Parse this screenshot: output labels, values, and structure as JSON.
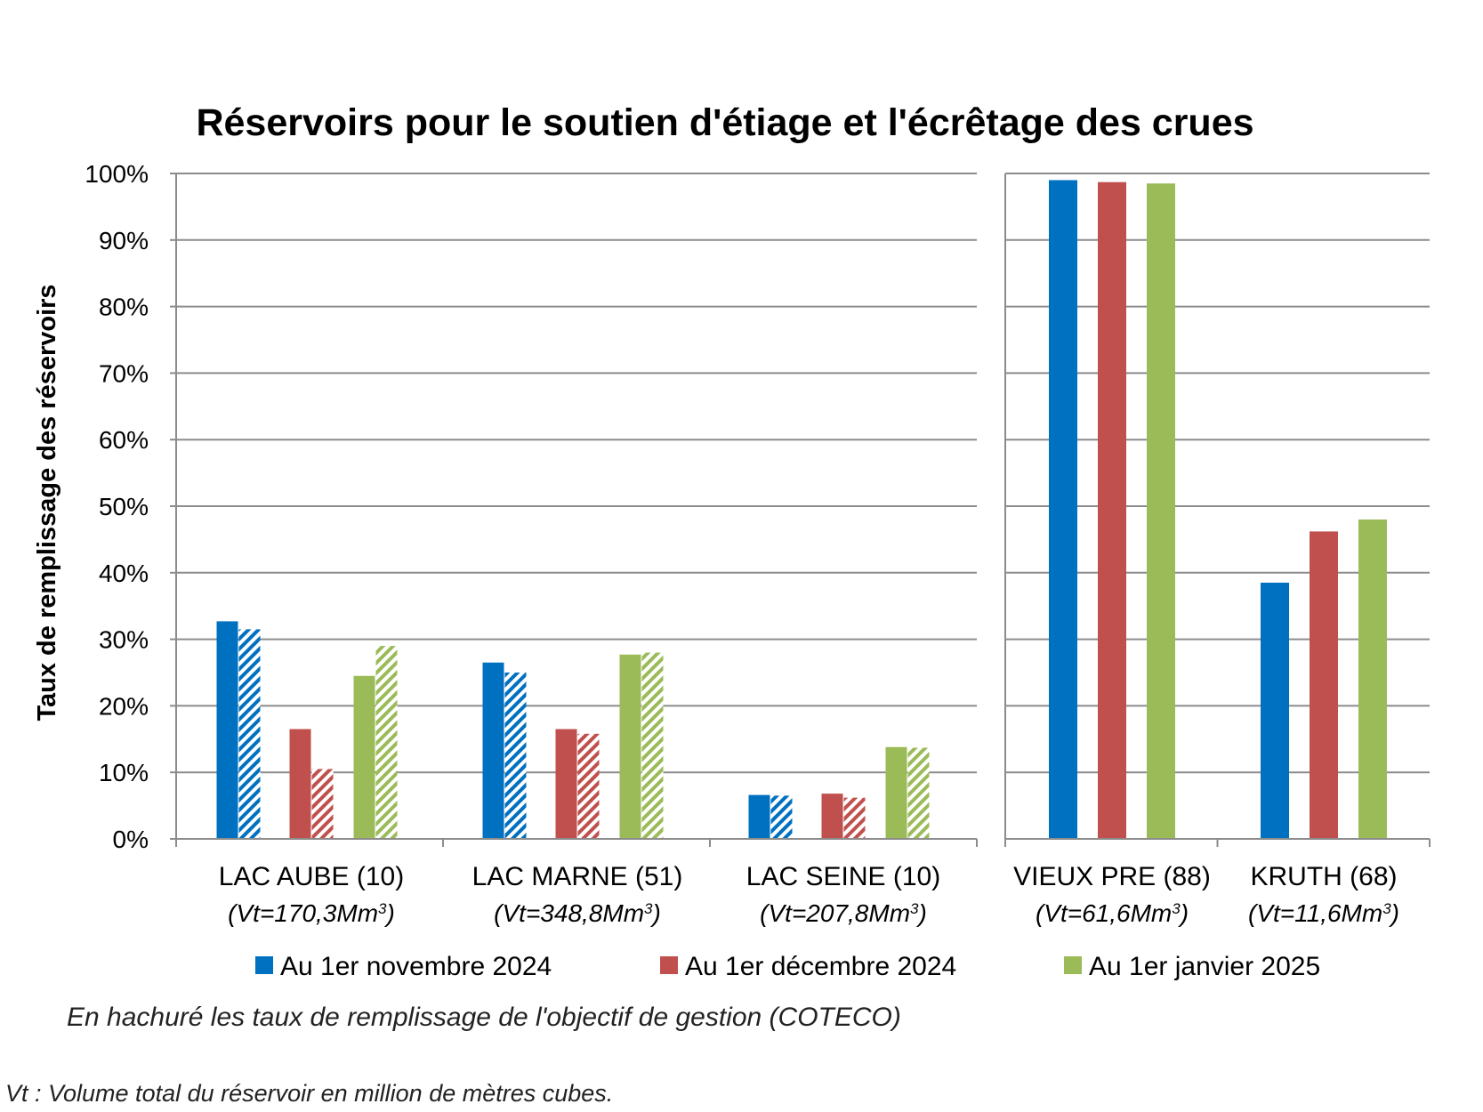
{
  "chart_data": {
    "type": "bar",
    "title": "Réservoirs pour le soutien d'étiage et l'écrêtage des crues",
    "ylabel": "Taux de remplissage des réservoirs",
    "xlabel": "",
    "ylim": [
      0,
      100
    ],
    "y_ticks": [
      "0%",
      "10%",
      "20%",
      "30%",
      "40%",
      "50%",
      "60%",
      "70%",
      "80%",
      "90%",
      "100%"
    ],
    "grid": true,
    "legend_position": "bottom",
    "series": [
      {
        "name": "Au 1er novembre 2024",
        "color": "#0070C0"
      },
      {
        "name": "Au 1er décembre 2024",
        "color": "#C0504D"
      },
      {
        "name": "Au 1er janvier 2025",
        "color": "#9BBB59"
      }
    ],
    "panels": [
      {
        "categories": [
          {
            "name": "LAC AUBE (10)",
            "volume": "(Vt=170,3Mm",
            "unit_sup": "3",
            "close": ")",
            "actual": [
              32.7,
              16.5,
              24.5
            ],
            "objective": [
              31.5,
              10.5,
              29.0
            ]
          },
          {
            "name": "LAC MARNE (51)",
            "volume": "(Vt=348,8Mm",
            "unit_sup": "3",
            "close": ")",
            "actual": [
              26.5,
              16.5,
              27.7
            ],
            "objective": [
              25.0,
              15.8,
              28.0
            ]
          },
          {
            "name": "LAC SEINE (10)",
            "volume": "(Vt=207,8Mm",
            "unit_sup": "3",
            "close": ")",
            "actual": [
              6.6,
              6.8,
              13.8
            ],
            "objective": [
              6.5,
              6.2,
              13.7
            ]
          }
        ]
      },
      {
        "categories": [
          {
            "name": "VIEUX PRE (88)",
            "volume": "(Vt=61,6Mm",
            "unit_sup": "3",
            "close": ")",
            "actual": [
              99.0,
              98.7,
              98.5
            ],
            "objective": null
          },
          {
            "name": "KRUTH (68)",
            "volume": "(Vt=11,6Mm",
            "unit_sup": "3",
            "close": ")",
            "actual": [
              38.5,
              46.2,
              48.0
            ],
            "objective": null
          }
        ]
      }
    ]
  },
  "notes": {
    "hatch": "En hachuré les taux de remplissage de l'objectif de gestion (COTECO)",
    "vt": "Vt : Volume total du réservoir en million de mètres cubes."
  }
}
